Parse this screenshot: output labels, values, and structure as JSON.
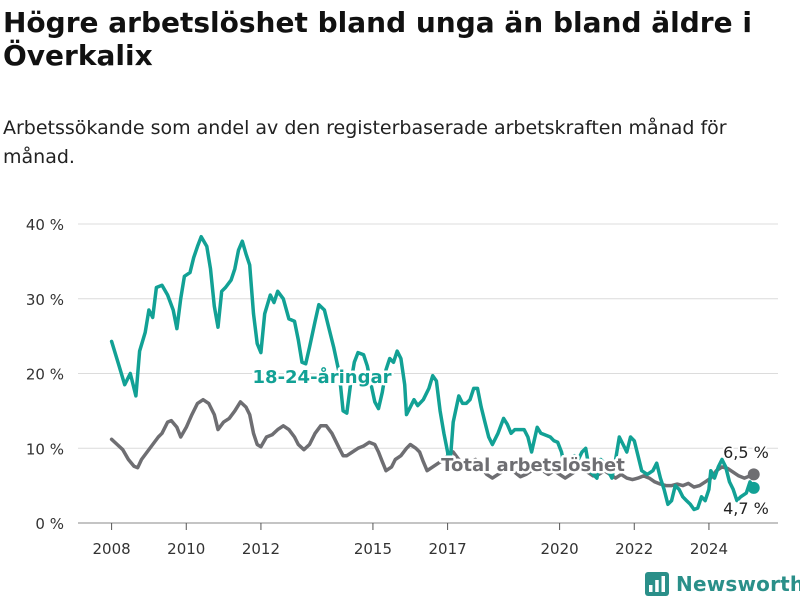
{
  "title": "Högre arbetslöshet bland unga än bland äldre i Överkalix",
  "subtitle": "Arbetssökande som andel av den registerbaserade arbetskraften månad för månad.",
  "logo": {
    "text": "Newsworthy",
    "icon": "bar-chart-logo-icon"
  },
  "colors": {
    "youth": "#12a195",
    "total": "#6e6e72",
    "grid": "#dcdcdc",
    "brand": "#2a8f89"
  },
  "chart_data": {
    "type": "line",
    "ylim": [
      0,
      40
    ],
    "y_ticks": [
      0,
      10,
      20,
      30,
      40
    ],
    "y_tick_labels": [
      "0 %",
      "10 %",
      "20 %",
      "30 %",
      "40 %"
    ],
    "x_ticks": [
      2008,
      2010,
      2012,
      2015,
      2017,
      2020,
      2022,
      2024
    ],
    "x_tick_labels": [
      "2008",
      "2010",
      "2012",
      "2015",
      "2017",
      "2020",
      "2022",
      "2024"
    ],
    "grid": true,
    "series": [
      {
        "name": "18-24-åringar",
        "color": "#12a195",
        "points": [
          [
            2008.0,
            24.3
          ],
          [
            2008.2,
            21.0
          ],
          [
            2008.35,
            18.5
          ],
          [
            2008.5,
            20.0
          ],
          [
            2008.65,
            17.0
          ],
          [
            2008.75,
            23.0
          ],
          [
            2008.9,
            25.5
          ],
          [
            2009.0,
            28.5
          ],
          [
            2009.1,
            27.5
          ],
          [
            2009.2,
            31.5
          ],
          [
            2009.35,
            31.8
          ],
          [
            2009.5,
            30.5
          ],
          [
            2009.65,
            28.5
          ],
          [
            2009.75,
            26.0
          ],
          [
            2009.85,
            30.0
          ],
          [
            2009.95,
            33.0
          ],
          [
            2010.1,
            33.5
          ],
          [
            2010.2,
            35.5
          ],
          [
            2010.3,
            37.0
          ],
          [
            2010.4,
            38.3
          ],
          [
            2010.55,
            37.0
          ],
          [
            2010.65,
            34.0
          ],
          [
            2010.75,
            29.0
          ],
          [
            2010.85,
            26.2
          ],
          [
            2010.95,
            31.0
          ],
          [
            2011.05,
            31.5
          ],
          [
            2011.2,
            32.5
          ],
          [
            2011.3,
            34.0
          ],
          [
            2011.4,
            36.5
          ],
          [
            2011.5,
            37.7
          ],
          [
            2011.6,
            36.0
          ],
          [
            2011.7,
            34.5
          ],
          [
            2011.8,
            28.0
          ],
          [
            2011.9,
            24.0
          ],
          [
            2012.0,
            22.8
          ],
          [
            2012.1,
            28.0
          ],
          [
            2012.25,
            30.5
          ],
          [
            2012.35,
            29.5
          ],
          [
            2012.45,
            31.0
          ],
          [
            2012.6,
            30.0
          ],
          [
            2012.75,
            27.3
          ],
          [
            2012.9,
            27.0
          ],
          [
            2013.0,
            24.5
          ],
          [
            2013.1,
            21.5
          ],
          [
            2013.2,
            21.3
          ],
          [
            2013.3,
            23.5
          ],
          [
            2013.45,
            27.0
          ],
          [
            2013.55,
            29.2
          ],
          [
            2013.7,
            28.5
          ],
          [
            2013.8,
            26.5
          ],
          [
            2013.95,
            23.5
          ],
          [
            2014.1,
            20.0
          ],
          [
            2014.2,
            15.0
          ],
          [
            2014.3,
            14.7
          ],
          [
            2014.4,
            18.5
          ],
          [
            2014.5,
            21.5
          ],
          [
            2014.6,
            22.8
          ],
          [
            2014.75,
            22.5
          ],
          [
            2014.85,
            21.0
          ],
          [
            2014.95,
            18.5
          ],
          [
            2015.05,
            16.2
          ],
          [
            2015.15,
            15.3
          ],
          [
            2015.25,
            17.5
          ],
          [
            2015.35,
            20.5
          ],
          [
            2015.45,
            22.0
          ],
          [
            2015.55,
            21.5
          ],
          [
            2015.65,
            23.0
          ],
          [
            2015.75,
            22.0
          ],
          [
            2015.85,
            18.5
          ],
          [
            2015.9,
            14.5
          ],
          [
            2016.0,
            15.5
          ],
          [
            2016.1,
            16.5
          ],
          [
            2016.2,
            15.7
          ],
          [
            2016.35,
            16.5
          ],
          [
            2016.5,
            18.0
          ],
          [
            2016.6,
            19.7
          ],
          [
            2016.7,
            19.0
          ],
          [
            2016.8,
            15.0
          ],
          [
            2016.9,
            12.0
          ],
          [
            2017.0,
            9.5
          ],
          [
            2017.05,
            7.0
          ],
          [
            2017.15,
            13.5
          ],
          [
            2017.3,
            17.0
          ],
          [
            2017.4,
            16.0
          ],
          [
            2017.5,
            16.0
          ],
          [
            2017.6,
            16.5
          ],
          [
            2017.7,
            18.0
          ],
          [
            2017.8,
            18.0
          ],
          [
            2017.9,
            15.5
          ],
          [
            2018.0,
            13.5
          ],
          [
            2018.1,
            11.5
          ],
          [
            2018.2,
            10.5
          ],
          [
            2018.35,
            12.0
          ],
          [
            2018.5,
            14.0
          ],
          [
            2018.6,
            13.2
          ],
          [
            2018.7,
            12.0
          ],
          [
            2018.8,
            12.5
          ],
          [
            2018.95,
            12.5
          ],
          [
            2019.05,
            12.5
          ],
          [
            2019.15,
            11.5
          ],
          [
            2019.25,
            9.5
          ],
          [
            2019.4,
            12.8
          ],
          [
            2019.5,
            12.0
          ],
          [
            2019.6,
            11.8
          ],
          [
            2019.75,
            11.5
          ],
          [
            2019.85,
            11.0
          ],
          [
            2019.95,
            10.8
          ],
          [
            2020.05,
            9.5
          ],
          [
            2020.15,
            7.0
          ],
          [
            2020.25,
            7.5
          ],
          [
            2020.4,
            9.0
          ],
          [
            2020.5,
            8.5
          ],
          [
            2020.6,
            9.5
          ],
          [
            2020.7,
            10.0
          ],
          [
            2020.8,
            7.0
          ],
          [
            2020.9,
            6.5
          ],
          [
            2021.0,
            6.0
          ],
          [
            2021.1,
            8.5
          ],
          [
            2021.2,
            8.0
          ],
          [
            2021.3,
            7.0
          ],
          [
            2021.4,
            6.0
          ],
          [
            2021.5,
            8.5
          ],
          [
            2021.6,
            11.5
          ],
          [
            2021.7,
            10.5
          ],
          [
            2021.8,
            9.5
          ],
          [
            2021.9,
            11.5
          ],
          [
            2022.0,
            11.0
          ],
          [
            2022.1,
            9.0
          ],
          [
            2022.2,
            7.0
          ],
          [
            2022.35,
            6.5
          ],
          [
            2022.5,
            7.0
          ],
          [
            2022.6,
            8.0
          ],
          [
            2022.7,
            6.0
          ],
          [
            2022.8,
            4.5
          ],
          [
            2022.9,
            2.5
          ],
          [
            2023.0,
            3.0
          ],
          [
            2023.1,
            5.0
          ],
          [
            2023.2,
            4.5
          ],
          [
            2023.3,
            3.5
          ],
          [
            2023.4,
            3.0
          ],
          [
            2023.5,
            2.5
          ],
          [
            2023.6,
            1.8
          ],
          [
            2023.7,
            2.0
          ],
          [
            2023.8,
            3.5
          ],
          [
            2023.9,
            3.0
          ],
          [
            2024.0,
            4.5
          ],
          [
            2024.05,
            7.0
          ],
          [
            2024.15,
            6.0
          ],
          [
            2024.25,
            7.5
          ],
          [
            2024.35,
            8.5
          ],
          [
            2024.45,
            7.5
          ],
          [
            2024.55,
            5.5
          ],
          [
            2024.65,
            4.5
          ],
          [
            2024.75,
            3.0
          ],
          [
            2024.85,
            3.5
          ],
          [
            2025.0,
            4.0
          ],
          [
            2025.1,
            5.5
          ],
          [
            2025.2,
            4.7
          ]
        ],
        "end_label": "4,7 %"
      },
      {
        "name": "Total arbetslöshet",
        "color": "#6e6e72",
        "points": [
          [
            2008.0,
            11.2
          ],
          [
            2008.15,
            10.5
          ],
          [
            2008.3,
            9.8
          ],
          [
            2008.45,
            8.5
          ],
          [
            2008.6,
            7.6
          ],
          [
            2008.7,
            7.4
          ],
          [
            2008.8,
            8.5
          ],
          [
            2008.95,
            9.5
          ],
          [
            2009.1,
            10.5
          ],
          [
            2009.25,
            11.5
          ],
          [
            2009.35,
            12.0
          ],
          [
            2009.5,
            13.5
          ],
          [
            2009.6,
            13.7
          ],
          [
            2009.75,
            12.8
          ],
          [
            2009.85,
            11.5
          ],
          [
            2010.0,
            12.8
          ],
          [
            2010.15,
            14.5
          ],
          [
            2010.3,
            16.0
          ],
          [
            2010.45,
            16.5
          ],
          [
            2010.6,
            16.0
          ],
          [
            2010.75,
            14.5
          ],
          [
            2010.85,
            12.5
          ],
          [
            2011.0,
            13.5
          ],
          [
            2011.15,
            14.0
          ],
          [
            2011.3,
            15.0
          ],
          [
            2011.45,
            16.2
          ],
          [
            2011.6,
            15.5
          ],
          [
            2011.7,
            14.5
          ],
          [
            2011.8,
            12.0
          ],
          [
            2011.9,
            10.5
          ],
          [
            2012.0,
            10.2
          ],
          [
            2012.15,
            11.5
          ],
          [
            2012.3,
            11.8
          ],
          [
            2012.45,
            12.5
          ],
          [
            2012.6,
            13.0
          ],
          [
            2012.75,
            12.5
          ],
          [
            2012.9,
            11.5
          ],
          [
            2013.0,
            10.5
          ],
          [
            2013.15,
            9.8
          ],
          [
            2013.3,
            10.5
          ],
          [
            2013.45,
            12.0
          ],
          [
            2013.6,
            13.0
          ],
          [
            2013.75,
            13.0
          ],
          [
            2013.9,
            12.0
          ],
          [
            2014.0,
            11.0
          ],
          [
            2014.1,
            10.0
          ],
          [
            2014.2,
            9.0
          ],
          [
            2014.3,
            9.0
          ],
          [
            2014.45,
            9.5
          ],
          [
            2014.6,
            10.0
          ],
          [
            2014.75,
            10.3
          ],
          [
            2014.9,
            10.8
          ],
          [
            2015.05,
            10.5
          ],
          [
            2015.15,
            9.5
          ],
          [
            2015.25,
            8.2
          ],
          [
            2015.35,
            7.0
          ],
          [
            2015.5,
            7.5
          ],
          [
            2015.6,
            8.5
          ],
          [
            2015.75,
            9.0
          ],
          [
            2015.9,
            10.0
          ],
          [
            2016.0,
            10.5
          ],
          [
            2016.15,
            10.0
          ],
          [
            2016.25,
            9.5
          ],
          [
            2016.35,
            8.2
          ],
          [
            2016.45,
            7.0
          ],
          [
            2016.6,
            7.5
          ],
          [
            2016.75,
            8.0
          ],
          [
            2016.9,
            8.5
          ],
          [
            2017.0,
            9.0
          ],
          [
            2017.15,
            9.5
          ],
          [
            2017.3,
            8.5
          ],
          [
            2017.45,
            7.5
          ],
          [
            2017.6,
            8.0
          ],
          [
            2017.75,
            8.5
          ],
          [
            2017.9,
            7.5
          ],
          [
            2018.05,
            6.5
          ],
          [
            2018.2,
            6.0
          ],
          [
            2018.35,
            6.5
          ],
          [
            2018.5,
            7.0
          ],
          [
            2018.65,
            7.5
          ],
          [
            2018.8,
            6.8
          ],
          [
            2018.95,
            6.2
          ],
          [
            2019.1,
            6.5
          ],
          [
            2019.25,
            7.0
          ],
          [
            2019.4,
            7.5
          ],
          [
            2019.55,
            7.0
          ],
          [
            2019.7,
            6.5
          ],
          [
            2019.85,
            7.0
          ],
          [
            2020.0,
            6.5
          ],
          [
            2020.15,
            6.0
          ],
          [
            2020.3,
            6.5
          ],
          [
            2020.45,
            7.0
          ],
          [
            2020.6,
            7.2
          ],
          [
            2020.75,
            6.8
          ],
          [
            2020.9,
            6.3
          ],
          [
            2021.05,
            6.5
          ],
          [
            2021.2,
            7.0
          ],
          [
            2021.35,
            6.5
          ],
          [
            2021.5,
            6.0
          ],
          [
            2021.65,
            6.5
          ],
          [
            2021.8,
            6.0
          ],
          [
            2021.95,
            5.8
          ],
          [
            2022.1,
            6.0
          ],
          [
            2022.25,
            6.3
          ],
          [
            2022.4,
            6.0
          ],
          [
            2022.55,
            5.5
          ],
          [
            2022.7,
            5.2
          ],
          [
            2022.85,
            5.0
          ],
          [
            2023.0,
            5.0
          ],
          [
            2023.15,
            5.2
          ],
          [
            2023.3,
            5.0
          ],
          [
            2023.45,
            5.3
          ],
          [
            2023.6,
            4.8
          ],
          [
            2023.75,
            5.0
          ],
          [
            2023.9,
            5.5
          ],
          [
            2024.05,
            6.0
          ],
          [
            2024.2,
            7.0
          ],
          [
            2024.35,
            7.5
          ],
          [
            2024.5,
            7.3
          ],
          [
            2024.65,
            6.8
          ],
          [
            2024.8,
            6.3
          ],
          [
            2024.95,
            6.0
          ],
          [
            2025.1,
            6.3
          ],
          [
            2025.2,
            6.5
          ]
        ],
        "end_label": "6,5 %"
      }
    ]
  }
}
